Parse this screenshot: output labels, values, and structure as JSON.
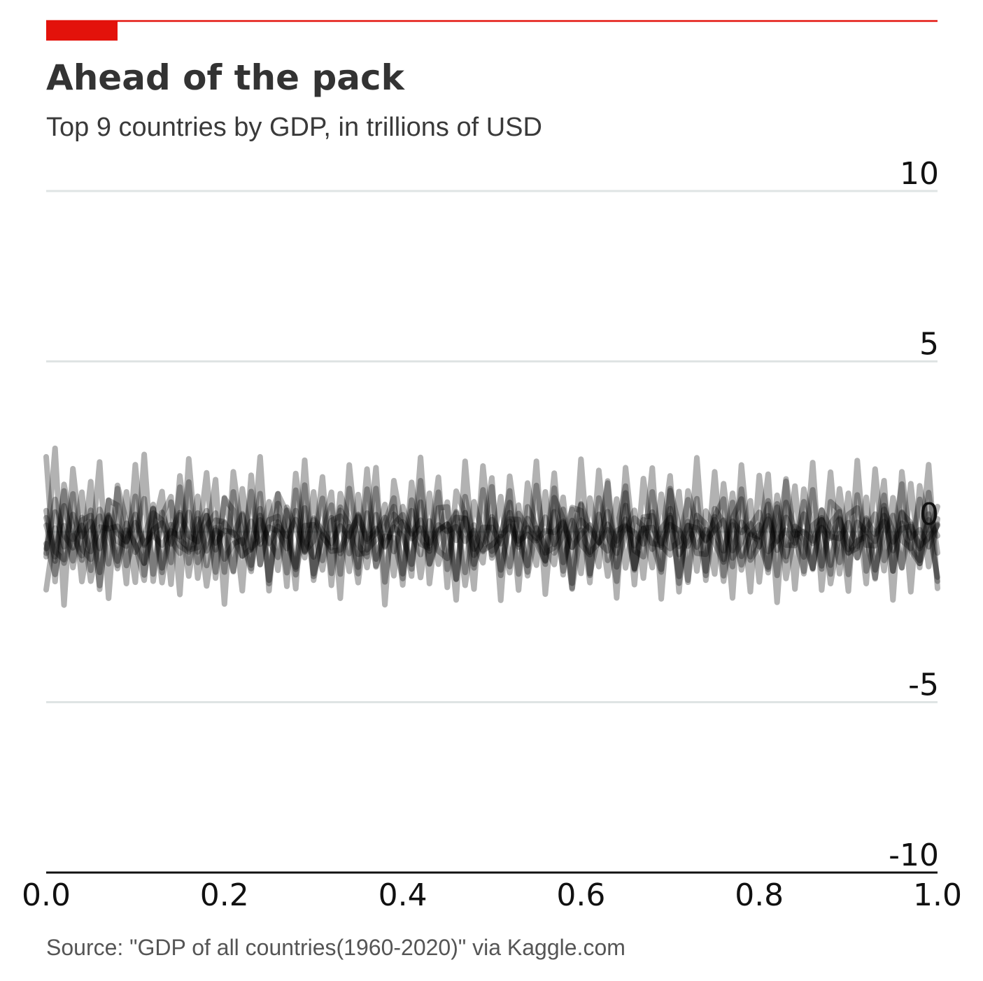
{
  "header": {
    "title": "Ahead of the pack",
    "subtitle": "Top 9 countries by GDP, in trillions of USD",
    "accent_color": "#e3120b"
  },
  "footer": {
    "source": "Source: \"GDP of all countries(1960-2020)\" via Kaggle.com"
  },
  "chart_data": {
    "type": "line",
    "title": "Ahead of the pack",
    "subtitle": "Top 9 countries by GDP, in trillions of USD",
    "xlabel": "",
    "ylabel": "",
    "xlim": [
      0.0,
      1.0
    ],
    "ylim": [
      -10,
      10
    ],
    "x_ticks": [
      0.0,
      0.2,
      0.4,
      0.6,
      0.8,
      1.0
    ],
    "x_tick_labels": [
      "0.0",
      "0.2",
      "0.4",
      "0.6",
      "0.8",
      "1.0"
    ],
    "y_ticks": [
      -10,
      -5,
      0,
      5,
      10
    ],
    "y_tick_labels": [
      "-10",
      "-5",
      "0",
      "5",
      "10"
    ],
    "grid": "horizontal",
    "line_color": "#000000",
    "line_opacity": 0.3,
    "points_per_series": 101,
    "series": [
      {
        "values": [
          0.19,
          -0.73,
          0.76,
          -0.22,
          0.19,
          -0.58,
          0.14,
          0.09,
          0.16,
          -0.28,
          0.27,
          -0.36,
          -0.09,
          -0.39,
          0.03,
          -0.15,
          0.57,
          -0.59,
          0.47,
          -0.33,
          0.04,
          -0.02,
          -0.34,
          0.31,
          -0.36,
          0.14,
          0.01,
          -0.49,
          0.62,
          -0.6,
          0.35,
          -0.15,
          -0.47,
          0.72,
          -0.64,
          0.48,
          -0.22,
          0.1,
          -0.45,
          0.23,
          0.5,
          -0.2,
          0.11,
          -0.33,
          0.2,
          0.01,
          0.15,
          -0.28,
          0.04,
          -0.58,
          0.44,
          -0.12,
          0.16,
          -0.37,
          0.39,
          -0.26,
          0.03,
          -0.02,
          0.31,
          -0.45,
          -0.08,
          0.2,
          -0.31,
          0.59,
          -0.4,
          0.15,
          -0.02,
          -0.36,
          0.58,
          -0.45,
          0.21,
          0.04,
          -0.42,
          0.29,
          -0.27,
          0.05,
          0.34,
          -0.55,
          0.28,
          -0.07,
          -0.15,
          0.37,
          -0.54,
          0.42,
          -0.1,
          0.01,
          -0.27,
          0.36,
          -0.14,
          -0.2,
          0.27,
          -0.43,
          0.35,
          -0.07,
          0.3,
          -0.55,
          0.58,
          -0.18,
          0.06,
          -0.44,
          0.22
        ]
      },
      {
        "values": [
          -0.49,
          0.58,
          -0.44,
          0.51,
          -0.14,
          0.3,
          -0.49,
          0.42,
          -0.04,
          -0.3,
          0.51,
          -0.4,
          0.06,
          0.26,
          -0.36,
          0.5,
          -0.12,
          -0.29,
          0.48,
          -0.53,
          0.26,
          -0.1,
          0.53,
          -0.53,
          0.48,
          -0.34,
          0.16,
          -0.13,
          0.36,
          -0.55,
          0.4,
          0.03,
          -0.34,
          0.17,
          -0.14,
          0.51,
          -0.28,
          -0.05,
          0.42,
          -0.58,
          0.29,
          -0.06,
          0.34,
          -0.42,
          0.06,
          0.22,
          -0.25,
          0.4,
          -0.51,
          0.13,
          0.13,
          -0.35,
          0.56,
          -0.45,
          0.12,
          -0.2,
          0.43,
          -0.37,
          0.27,
          -0.46,
          0.34,
          0.08,
          -0.33,
          0.22,
          -0.27,
          0.37,
          -0.41,
          0.1,
          0.13,
          -0.34,
          0.48,
          -0.43,
          0.18,
          0.11,
          -0.24,
          0.36,
          -0.56,
          0.31,
          -0.02,
          0.24,
          -0.44,
          0.47,
          -0.28,
          0.05,
          -0.33,
          0.52,
          -0.34,
          0.13,
          -0.19,
          0.4,
          -0.52,
          0.28,
          0.02,
          -0.28,
          0.48,
          -0.3,
          0.1,
          0.16,
          -0.49,
          0.35,
          -0.12
        ]
      },
      {
        "values": [
          0.62,
          -0.86,
          1.2,
          -1.05,
          0.34,
          0.48,
          -1.19,
          0.93,
          -0.28,
          -0.42,
          1.04,
          -1.27,
          0.55,
          0.35,
          -0.9,
          1.31,
          -0.92,
          0.12,
          0.62,
          -1.18,
          1.0,
          -0.2,
          -0.71,
          1.18,
          -0.96,
          0.35,
          0.45,
          -1.2,
          1.22,
          -0.58,
          -0.27,
          0.98,
          -1.22,
          0.63,
          0.21,
          -1.04,
          1.25,
          -0.8,
          0.08,
          0.74,
          -1.23,
          0.93,
          -0.18,
          -0.57,
          1.16,
          -1.1,
          0.42,
          0.39,
          -1.06,
          1.23,
          -0.77,
          -0.11,
          0.86,
          -1.24,
          0.73,
          0.11,
          -0.84,
          1.28,
          -0.9,
          0.05,
          0.79,
          -1.28,
          0.99,
          -0.15,
          -0.63,
          1.14,
          -1.12,
          0.43,
          0.47,
          -1.1,
          1.21,
          -0.67,
          -0.26,
          0.97,
          -1.15,
          0.68,
          0.27,
          -1.02,
          1.25,
          -0.73,
          -0.02,
          0.81,
          -1.28,
          0.86,
          0.04,
          -0.74,
          1.23,
          -1.0,
          0.25,
          0.59,
          -1.25,
          1.08,
          -0.39,
          -0.41,
          1.07,
          -1.15,
          0.55,
          0.26,
          -1.05,
          1.15,
          -0.62
        ]
      },
      {
        "values": [
          -0.35,
          -1.25,
          0.18,
          -0.85,
          0.42,
          -1.45,
          -0.21,
          0.46,
          -0.86,
          0.25,
          -0.4,
          -0.92,
          0.69,
          -1.06,
          0.03,
          0.56,
          -1.3,
          0.38,
          -0.56,
          0.05,
          -0.11,
          -1.17,
          0.49,
          -0.98,
          0.35,
          -0.26,
          -0.75,
          0.63,
          -1.26,
          0.18,
          0.21,
          -1.12,
          0.41,
          -0.64,
          -0.06,
          0.44,
          -1.05,
          0.5,
          -0.42,
          0.14,
          -0.13,
          -0.95,
          0.87,
          -0.93,
          0.03,
          0.23,
          -1.39,
          0.56,
          -0.69,
          -0.32,
          0.36,
          -1.12,
          0.31,
          -0.27,
          -0.08,
          -0.32,
          -0.86,
          0.59,
          -1.15,
          0.33,
          -0.37,
          -0.67,
          0.51,
          -1.3,
          0.03,
          0.19,
          -1.08,
          0.36,
          -0.51,
          0.1,
          0.42,
          -1.31,
          0.19,
          -0.45,
          0.06,
          -0.33,
          -0.89,
          0.86,
          -1.12,
          -0.09,
          0.2,
          -1.2,
          0.72,
          -0.73,
          0.16,
          -0.03,
          -1.07,
          0.35,
          -0.98,
          0.36,
          -0.28,
          -0.76,
          0.4,
          -1.12,
          -0.06,
          0.48,
          -1.05,
          0.22,
          -0.42,
          -0.18,
          0.18
        ]
      },
      {
        "values": [
          -1.7,
          0.11,
          -0.92,
          -0.11,
          -0.7,
          0.63,
          -1.58,
          0.49,
          -1.08,
          0.05,
          -0.37,
          -1.42,
          0.8,
          -1.49,
          0.21,
          -0.42,
          -0.59,
          0.55,
          -1.59,
          0.12,
          -0.8,
          -0.35,
          -0.23,
          -1.16,
          0.68,
          -1.42,
          0.29,
          -0.26,
          -1.1,
          0.7,
          -1.31,
          -0.09,
          -0.57,
          -0.53,
          0.15,
          -1.49,
          0.55,
          -1.0,
          -0.13,
          -0.18,
          -1.37,
          0.62,
          -1.34,
          0.32,
          -0.56,
          -0.78,
          0.59,
          -1.57,
          0.2,
          -0.54,
          -0.39,
          -0.14,
          -1.2,
          0.78,
          -1.29,
          0.11,
          -0.41,
          -0.96,
          0.66,
          -1.68,
          0.05,
          -0.6,
          -0.33,
          0.06,
          -1.45,
          0.77,
          -1.08,
          0.1,
          -0.32,
          -1.18,
          0.68,
          -1.51,
          0.3,
          -0.63,
          -0.66,
          0.44,
          -1.45,
          0.2,
          -0.97,
          -0.09,
          -0.26,
          -1.1,
          0.82,
          -1.37,
          0.01,
          -0.24,
          -1.07,
          0.64,
          -1.52,
          -0.05,
          -0.63,
          -0.27,
          -0.14,
          -1.35,
          0.77,
          -1.15,
          0.25,
          -0.54,
          -0.93,
          0.52,
          -1.45
        ]
      },
      {
        "values": [
          2.2,
          -1.46,
          1.39,
          0.06,
          -0.83,
          1.47,
          -1.69,
          0.92,
          0.78,
          -1.52,
          1.97,
          -0.92,
          0.01,
          1.18,
          -1.54,
          1.64,
          -0.53,
          -0.46,
          1.73,
          -1.36,
          0.98,
          0.63,
          -1.73,
          1.66,
          -0.96,
          0.28,
          1.12,
          -1.6,
          1.71,
          -0.25,
          -0.74,
          1.61,
          -1.57,
          1.12,
          0.32,
          -1.23,
          1.84,
          -1.03,
          0.27,
          0.99,
          -1.56,
          1.45,
          -0.36,
          -0.48,
          1.6,
          -1.63,
          1.19,
          0.52,
          -1.68,
          1.93,
          -0.68,
          -0.2,
          1.2,
          -1.71,
          1.43,
          -0.05,
          -0.95,
          1.72,
          -1.26,
          0.71,
          0.62,
          -1.49,
          1.8,
          -0.84,
          0.03,
          1.34,
          -1.55,
          1.56,
          -0.34,
          -0.39,
          1.64,
          -1.76,
          1.2,
          0.22,
          -1.28,
          1.76,
          -1.29,
          0.41,
          0.96,
          -1.76,
          1.65,
          -0.58,
          -0.25,
          1.48,
          -1.68,
          1.25,
          0.1,
          -1.09,
          1.75,
          -1.23,
          0.51,
          0.7,
          -1.52,
          1.84,
          -0.84,
          -0.28,
          1.4,
          -1.76,
          1.35,
          0.12,
          -1.33
        ]
      },
      {
        "values": [
          -0.63,
          0.95,
          -0.1,
          -0.47,
          1.16,
          -1.13,
          0.66,
          0.02,
          -0.99,
          1.17,
          -0.6,
          -0.14,
          0.67,
          -1.19,
          0.87,
          -0.23,
          -0.48,
          1.04,
          -0.99,
          0.34,
          0.29,
          -1.15,
          1.26,
          -0.47,
          -0.23,
          0.88,
          -1.13,
          0.72,
          0.09,
          -0.76,
          1.17,
          -0.84,
          0.33,
          0.46,
          -1.16,
          1.09,
          -0.53,
          -0.23,
          0.8,
          -1.29,
          0.74,
          -0.05,
          -0.67,
          1.13,
          -0.95,
          0.13,
          0.55,
          -1.19,
          0.88,
          -0.12,
          -0.57,
          1.03,
          -1.02,
          0.54,
          0.11,
          -0.98,
          1.17,
          -0.62,
          -0.1,
          0.66,
          -1.22,
          0.99,
          -0.3,
          -0.56,
          0.96,
          -1.06,
          0.4,
          0.15,
          -1.05,
          1.1,
          -0.49,
          -0.29,
          0.94,
          -1.15,
          0.61,
          0.11,
          -0.81,
          1.13,
          -0.72,
          0.16,
          0.57,
          -1.04,
          1.07,
          -0.39,
          -0.4,
          0.88,
          -1.1,
          0.63,
          0.1,
          -0.9,
          1.13,
          -0.76,
          0.07,
          0.52,
          -1.14,
          1.0,
          -0.25,
          -0.49,
          0.95,
          -1.02,
          0.38
        ]
      },
      {
        "values": [
          -0.73,
          2.45,
          -2.15,
          1.85,
          -0.5,
          -0.81,
          2.05,
          -1.95,
          1.36,
          0.29,
          -1.48,
          2.27,
          -1.45,
          0.48,
          1.03,
          -1.84,
          2.14,
          -0.9,
          -0.34,
          1.53,
          -2.12,
          1.76,
          -0.19,
          -1.08,
          2.2,
          -1.73,
          1.11,
          0.56,
          -1.67,
          2.1,
          -1.42,
          0.06,
          1.16,
          -1.95,
          1.96,
          -0.66,
          -0.61,
          1.88,
          -2.14,
          1.5,
          0.05,
          -1.3,
          2.18,
          -1.52,
          0.7,
          0.73,
          -2.0,
          2.07,
          -0.95,
          -0.16,
          1.58,
          -2.01,
          1.63,
          -0.27,
          -0.99,
          2.07,
          -1.83,
          1.0,
          0.39,
          -1.65,
          2.13,
          -1.23,
          -0.11,
          1.43,
          -1.94,
          1.88,
          -0.55,
          -0.73,
          1.87,
          -1.97,
          1.27,
          0.17,
          -1.48,
          2.17,
          -1.42,
          0.46,
          0.96,
          -1.94,
          1.96,
          -0.83,
          -0.41,
          1.69,
          -2.07,
          1.55,
          -0.17,
          -1.16,
          2.03,
          -1.71,
          0.88,
          0.63,
          -1.74,
          2.09,
          -1.15,
          -0.24,
          1.5,
          -2.0,
          1.76,
          -0.48,
          -0.84,
          1.97,
          -1.66
        ]
      },
      {
        "values": [
          0.41,
          -0.58,
          -0.82,
          1.11,
          -1.46,
          0.03,
          0.46,
          -0.94,
          1.27,
          -0.99,
          -0.1,
          0.97,
          -1.24,
          0.57,
          -0.24,
          -0.63,
          1.46,
          -1.36,
          0.16,
          0.55,
          -1.18,
          1.17,
          -0.71,
          -0.49,
          1.12,
          -1.52,
          0.83,
          -0.1,
          -1.04,
          1.37,
          -1.23,
          -0.06,
          0.78,
          -1.24,
          1.27,
          -0.39,
          -0.73,
          1.27,
          -1.47,
          0.51,
          0.21,
          -1.09,
          1.5,
          -0.95,
          -0.21,
          0.87,
          -1.39,
          1.03,
          -0.28,
          -0.91,
          1.32,
          -1.28,
          0.37,
          0.36,
          -1.18,
          1.36,
          -0.62,
          -0.46,
          1.01,
          -1.51,
          0.82,
          0.07,
          -1.02,
          1.49,
          -1.03,
          -0.03,
          0.63,
          -1.36,
          1.17,
          -0.4,
          -0.68,
          1.18,
          -1.42,
          0.48,
          0.23,
          -1.24,
          1.41,
          -0.77,
          -0.31,
          0.91,
          -1.47,
          0.91,
          -0.15,
          -0.85,
          1.34,
          -1.23,
          0.19,
          0.41,
          -1.24,
          1.26,
          -0.61,
          -0.48,
          1.01,
          -1.38,
          0.66,
          0.03,
          -1.06,
          1.41,
          -0.93,
          -0.06,
          0.74
        ]
      }
    ]
  }
}
